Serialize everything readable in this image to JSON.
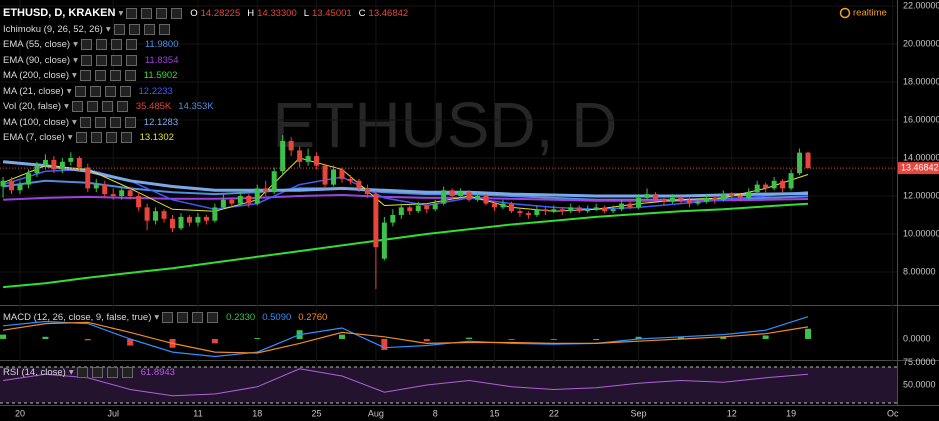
{
  "chart_data": {
    "type": "candlestick",
    "title": "ETHUSD, D, KRAKEN",
    "ohlc": [
      {
        "label": "O",
        "value": "14.28225"
      },
      {
        "label": "H",
        "value": "14.33300"
      },
      {
        "label": "L",
        "value": "13.45001"
      },
      {
        "label": "C",
        "value": "13.46842"
      }
    ],
    "watermark": "ETHUSD, D",
    "status": "realtime",
    "up_color": "#3cc24a",
    "down_color": "#e8453c",
    "xlim": [
      -0.36,
      105.5
    ],
    "xticks": [
      {
        "value": 2,
        "label": "20"
      },
      {
        "value": 13,
        "label": "Jul"
      },
      {
        "value": 23,
        "label": "11"
      },
      {
        "value": 30,
        "label": "18"
      },
      {
        "value": 37,
        "label": "25"
      },
      {
        "value": 44,
        "label": "Aug"
      },
      {
        "value": 51,
        "label": "8"
      },
      {
        "value": 58,
        "label": "15"
      },
      {
        "value": 65,
        "label": "22"
      },
      {
        "value": 75,
        "label": "Sep"
      },
      {
        "value": 86,
        "label": "12"
      },
      {
        "value": 93,
        "label": "19"
      },
      {
        "value": 105,
        "label": "Oc"
      }
    ],
    "ylim": [
      6.26,
      22.32
    ],
    "yticks": [
      {
        "value": 8,
        "label": "8.00000"
      },
      {
        "value": 10,
        "label": "10.00000"
      },
      {
        "value": 12,
        "label": "12.00000"
      },
      {
        "value": 14,
        "label": "14.00000"
      },
      {
        "value": 16,
        "label": "16.00000"
      },
      {
        "value": 18,
        "label": "18.00000"
      },
      {
        "value": 20,
        "label": "20.00000"
      },
      {
        "value": 22,
        "label": "22.00000"
      }
    ],
    "grid": true,
    "candles": [
      [
        12.5,
        13.0,
        11.9,
        12.8
      ],
      [
        12.8,
        13.0,
        12.1,
        12.3
      ],
      [
        12.3,
        12.8,
        12.1,
        12.6
      ],
      [
        12.6,
        13.4,
        12.4,
        13.2
      ],
      [
        13.2,
        13.8,
        13.0,
        13.6
      ],
      [
        13.6,
        14.2,
        13.4,
        13.9
      ],
      [
        13.9,
        14.1,
        13.2,
        13.4
      ],
      [
        13.4,
        14.0,
        13.2,
        13.8
      ],
      [
        13.8,
        14.3,
        13.6,
        14.0
      ],
      [
        14.0,
        14.1,
        13.3,
        13.5
      ],
      [
        13.5,
        13.7,
        12.2,
        12.4
      ],
      [
        12.4,
        12.9,
        12.2,
        12.6
      ],
      [
        12.6,
        12.8,
        11.9,
        12.1
      ],
      [
        12.1,
        12.4,
        11.8,
        12.0
      ],
      [
        12.0,
        12.5,
        11.8,
        12.3
      ],
      [
        12.3,
        12.5,
        11.8,
        12.0
      ],
      [
        12.0,
        12.2,
        11.2,
        11.4
      ],
      [
        11.4,
        11.6,
        10.2,
        10.7
      ],
      [
        10.7,
        11.4,
        10.5,
        11.2
      ],
      [
        11.2,
        11.3,
        10.6,
        10.8
      ],
      [
        10.8,
        11.0,
        10.1,
        10.3
      ],
      [
        10.3,
        11.1,
        10.2,
        10.9
      ],
      [
        10.9,
        11.0,
        10.4,
        10.6
      ],
      [
        10.6,
        11.1,
        10.4,
        10.9
      ],
      [
        10.9,
        11.0,
        10.5,
        10.7
      ],
      [
        10.7,
        11.6,
        10.6,
        11.4
      ],
      [
        11.4,
        12.1,
        11.3,
        11.8
      ],
      [
        11.8,
        11.9,
        11.4,
        11.6
      ],
      [
        11.6,
        12.3,
        11.5,
        12.0
      ],
      [
        12.0,
        12.1,
        11.4,
        11.6
      ],
      [
        11.6,
        12.6,
        11.5,
        12.4
      ],
      [
        12.4,
        12.8,
        12.0,
        12.2
      ],
      [
        12.2,
        13.5,
        12.1,
        13.3
      ],
      [
        13.3,
        15.2,
        13.1,
        14.9
      ],
      [
        14.9,
        15.1,
        14.1,
        14.4
      ],
      [
        14.4,
        14.6,
        13.5,
        13.8
      ],
      [
        13.8,
        14.5,
        13.6,
        14.1
      ],
      [
        14.1,
        14.3,
        13.4,
        13.6
      ],
      [
        13.6,
        13.7,
        12.4,
        12.6
      ],
      [
        12.6,
        13.6,
        12.5,
        13.4
      ],
      [
        13.4,
        13.5,
        12.7,
        12.9
      ],
      [
        12.9,
        13.1,
        12.6,
        12.8
      ],
      [
        12.8,
        12.9,
        12.2,
        12.4
      ],
      [
        12.4,
        12.6,
        11.9,
        12.1
      ],
      [
        12.1,
        12.3,
        7.1,
        9.3
      ],
      [
        8.7,
        10.9,
        8.6,
        10.6
      ],
      [
        10.6,
        11.3,
        10.4,
        11.0
      ],
      [
        11.0,
        11.6,
        10.8,
        11.4
      ],
      [
        11.4,
        11.5,
        11.0,
        11.2
      ],
      [
        11.2,
        11.7,
        11.1,
        11.5
      ],
      [
        11.5,
        11.6,
        11.1,
        11.3
      ],
      [
        11.3,
        11.8,
        11.2,
        11.6
      ],
      [
        11.6,
        12.5,
        11.5,
        12.3
      ],
      [
        12.3,
        12.4,
        11.8,
        12.0
      ],
      [
        12.0,
        12.4,
        11.9,
        12.2
      ],
      [
        12.2,
        12.3,
        11.7,
        11.8
      ],
      [
        11.8,
        12.2,
        11.7,
        12.0
      ],
      [
        12.0,
        12.1,
        11.5,
        11.6
      ],
      [
        11.6,
        11.7,
        11.2,
        11.4
      ],
      [
        11.4,
        11.8,
        11.3,
        11.6
      ],
      [
        11.6,
        11.7,
        11.1,
        11.2
      ],
      [
        11.2,
        11.3,
        10.9,
        11.1
      ],
      [
        11.1,
        11.2,
        10.8,
        11.0
      ],
      [
        11.0,
        11.5,
        10.9,
        11.3
      ],
      [
        11.3,
        11.4,
        11.0,
        11.2
      ],
      [
        11.2,
        11.5,
        11.1,
        11.3
      ],
      [
        11.3,
        11.4,
        11.0,
        11.2
      ],
      [
        11.2,
        11.6,
        11.1,
        11.4
      ],
      [
        11.4,
        11.5,
        11.1,
        11.2
      ],
      [
        11.2,
        11.5,
        11.1,
        11.3
      ],
      [
        11.3,
        11.6,
        11.2,
        11.4
      ],
      [
        11.4,
        11.5,
        11.1,
        11.2
      ],
      [
        11.2,
        11.5,
        11.1,
        11.3
      ],
      [
        11.3,
        11.8,
        11.2,
        11.6
      ],
      [
        11.6,
        11.7,
        11.3,
        11.4
      ],
      [
        11.4,
        12.1,
        11.3,
        11.9
      ],
      [
        11.9,
        12.4,
        11.8,
        12.1
      ],
      [
        12.1,
        12.2,
        11.7,
        11.8
      ],
      [
        11.8,
        11.9,
        11.5,
        11.7
      ],
      [
        11.7,
        12.1,
        11.6,
        11.9
      ],
      [
        11.9,
        12.0,
        11.6,
        11.8
      ],
      [
        11.8,
        11.9,
        11.4,
        11.6
      ],
      [
        11.6,
        11.9,
        11.5,
        11.7
      ],
      [
        11.7,
        12.1,
        11.6,
        11.9
      ],
      [
        11.9,
        12.0,
        11.6,
        11.8
      ],
      [
        11.8,
        12.3,
        11.7,
        12.1
      ],
      [
        12.1,
        12.2,
        11.8,
        12.0
      ],
      [
        12.0,
        12.1,
        11.7,
        11.9
      ],
      [
        11.9,
        12.4,
        11.8,
        12.2
      ],
      [
        12.2,
        12.8,
        12.1,
        12.6
      ],
      [
        12.6,
        12.7,
        12.2,
        12.4
      ],
      [
        12.4,
        13.0,
        12.3,
        12.8
      ],
      [
        12.8,
        12.9,
        12.2,
        12.4
      ],
      [
        12.4,
        13.4,
        12.3,
        13.2
      ],
      [
        13.2,
        14.5,
        13.1,
        14.28225
      ],
      [
        14.28225,
        14.333,
        13.45001,
        13.46842
      ]
    ],
    "line_x": [
      0,
      5,
      10,
      15,
      20,
      25,
      30,
      35,
      40,
      45,
      50,
      55,
      60,
      65,
      70,
      75,
      80,
      85,
      90,
      95
    ],
    "overlays": [
      {
        "name": "Ichimoku (9, 26, 52, 26)"
      },
      {
        "name": "EMA (55, close)",
        "labels": [
          "11.9800"
        ],
        "color": "#4f8fe0",
        "width": 2,
        "values": [
          12.5,
          12.8,
          12.7,
          12.4,
          12.2,
          12.1,
          12.2,
          12.4,
          12.4,
          12.2,
          12.1,
          12.1,
          12.0,
          11.9,
          11.8,
          11.8,
          11.8,
          11.85,
          11.9,
          11.98
        ]
      },
      {
        "name": "EMA (90, close)",
        "labels": [
          "11.8354"
        ],
        "color": "#a040e0",
        "width": 2,
        "values": [
          11.8,
          11.9,
          11.95,
          11.9,
          11.85,
          11.85,
          11.9,
          12.0,
          12.05,
          11.95,
          11.9,
          11.9,
          11.85,
          11.8,
          11.75,
          11.75,
          11.75,
          11.78,
          11.8,
          11.84
        ]
      },
      {
        "name": "MA (200, close)",
        "labels": [
          "11.5902"
        ],
        "color": "#33dd33",
        "width": 2,
        "values": [
          7.2,
          7.4,
          7.7,
          7.95,
          8.2,
          8.5,
          8.8,
          9.1,
          9.4,
          9.7,
          10.0,
          10.25,
          10.5,
          10.7,
          10.9,
          11.05,
          11.2,
          11.3,
          11.45,
          11.59
        ]
      },
      {
        "name": "MA (21, close)",
        "labels": [
          "12.2233"
        ],
        "color": "#3d5cff",
        "width": 1.5,
        "values": [
          12.6,
          13.3,
          13.4,
          12.8,
          11.8,
          11.3,
          11.6,
          12.6,
          13.0,
          11.9,
          11.5,
          11.9,
          11.6,
          11.4,
          11.3,
          11.4,
          11.6,
          11.8,
          12.0,
          12.22
        ]
      },
      {
        "name": "Vol (20, false)",
        "labels": [
          "35.485K",
          "14.353K"
        ],
        "label_colors": [
          "#e8453c",
          "#4f8fe0"
        ]
      },
      {
        "name": "MA (100, close)",
        "labels": [
          "12.1283"
        ],
        "color": "#7aa9e8",
        "width": 3,
        "values": [
          13.8,
          13.6,
          13.3,
          12.8,
          12.5,
          12.3,
          12.3,
          12.3,
          12.4,
          12.3,
          12.2,
          12.2,
          12.1,
          12.05,
          12.0,
          12.0,
          12.0,
          12.05,
          12.1,
          12.13
        ]
      },
      {
        "name": "EMA (7, close)",
        "labels": [
          "13.1302"
        ],
        "color": "#e6e62a",
        "width": 1,
        "values": [
          12.7,
          13.6,
          13.4,
          12.4,
          11.3,
          11.2,
          11.8,
          14.0,
          13.4,
          11.5,
          11.6,
          12.0,
          11.4,
          11.2,
          11.3,
          11.6,
          11.8,
          11.9,
          12.4,
          13.13
        ]
      }
    ],
    "macd": {
      "name": "MACD (12, 26, close, 9, false, true)",
      "ylim": [
        -0.48,
        0.73
      ],
      "yticks": [
        {
          "value": 0,
          "label": "0.0000"
        }
      ],
      "down_color": "#e8453c",
      "parts": [
        {
          "label": "0.2330",
          "color": "#3cc24a",
          "kind": "histogram",
          "values": [
            0.1,
            0.05,
            -0.03,
            -0.15,
            -0.2,
            -0.1,
            0.02,
            0.2,
            0.1,
            -0.25,
            -0.05,
            0.03,
            -0.02,
            -0.02,
            0,
            0.05,
            0.05,
            0.05,
            0.08,
            0.233
          ]
        },
        {
          "label": "0.5090",
          "color": "#2f8fff",
          "values": [
            0.3,
            0.4,
            0.35,
            0.0,
            -0.3,
            -0.4,
            -0.3,
            0.1,
            0.25,
            -0.2,
            -0.15,
            -0.05,
            -0.1,
            -0.12,
            -0.1,
            0.0,
            0.05,
            0.1,
            0.2,
            0.509
          ]
        },
        {
          "label": "0.2760",
          "color": "#f08a24",
          "values": [
            0.2,
            0.35,
            0.38,
            0.15,
            -0.1,
            -0.3,
            -0.32,
            -0.1,
            0.15,
            0.05,
            -0.1,
            -0.08,
            -0.08,
            -0.1,
            -0.1,
            -0.05,
            0.0,
            0.05,
            0.12,
            0.276
          ]
        }
      ]
    },
    "rsi": {
      "name": "RSI (14, close)",
      "label": "61.8943",
      "color": "#b061d8",
      "ylim": [
        27.8,
        75.6
      ],
      "yticks": [
        {
          "value": 75,
          "label": "75.0000"
        },
        {
          "value": 50,
          "label": "50.0000"
        }
      ],
      "bands": [
        70,
        30
      ],
      "band_color": "#24132f",
      "values": [
        55,
        62,
        58,
        45,
        38,
        40,
        48,
        68,
        60,
        42,
        50,
        55,
        48,
        45,
        47,
        52,
        55,
        53,
        58,
        61.8943
      ]
    }
  }
}
